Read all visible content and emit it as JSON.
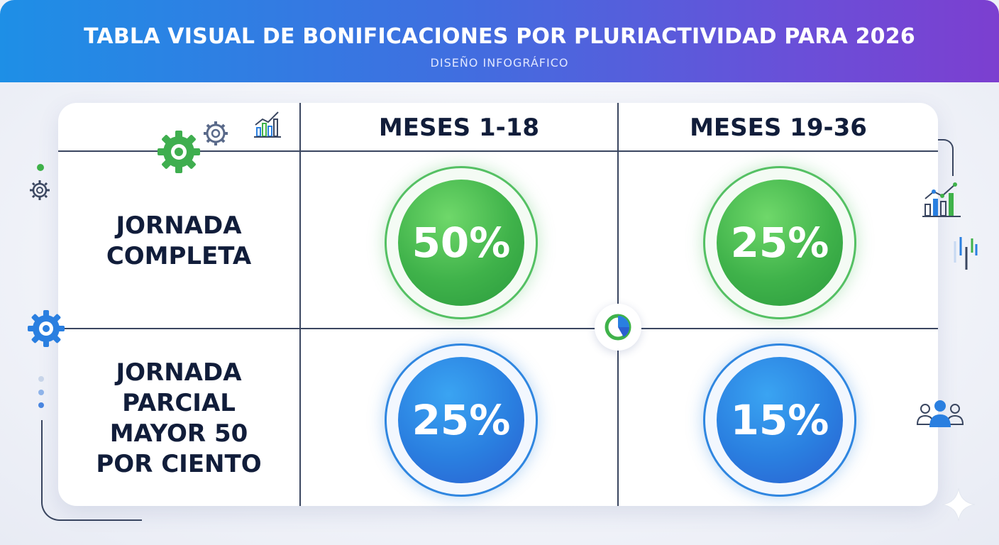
{
  "header": {
    "title": "TABLA VISUAL DE BONIFICACIONES POR PLURIACTIVIDAD PARA 2026",
    "subtitle": "DISEÑO INFOGRÁFICO"
  },
  "table": {
    "columns": [
      "MESES 1-18",
      "MESES 19-36"
    ],
    "rows": [
      {
        "label": "JORNADA COMPLETA",
        "values": [
          "50%",
          "25%"
        ]
      },
      {
        "label": "JORNADA PARCIAL MAYOR 50 POR CIENTO",
        "values": [
          "25%",
          "15%"
        ]
      }
    ]
  },
  "colors": {
    "header_start": "#1e8fe6",
    "header_end": "#7c3fd0",
    "green": "#3fb24a",
    "blue": "#2a7fe0",
    "text": "#111d3a"
  },
  "icons": [
    "gear-icon",
    "bar-chart-icon",
    "pie-chart-icon",
    "users-icon",
    "sparkle-icon"
  ]
}
